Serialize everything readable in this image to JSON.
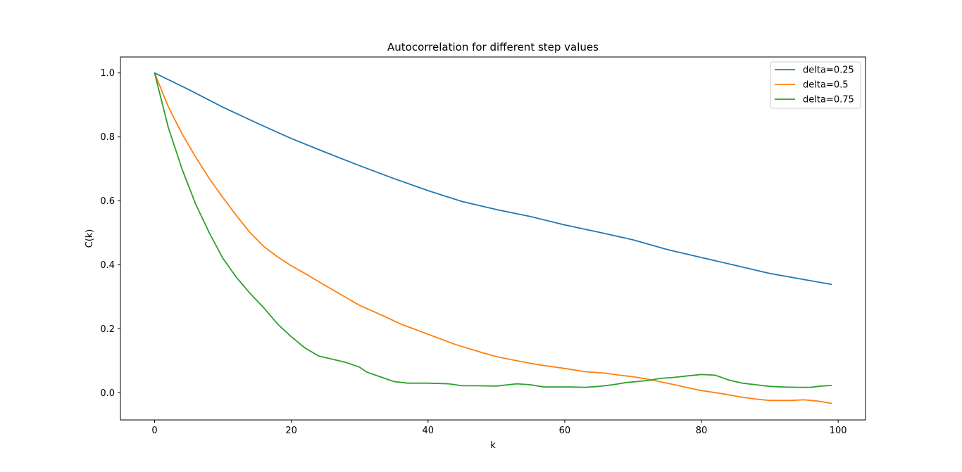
{
  "chart_data": {
    "type": "line",
    "title": "Autocorrelation for different step values",
    "xlabel": "k",
    "ylabel": "C(k)",
    "xlim": [
      -5,
      104
    ],
    "ylim": [
      -0.085,
      1.05
    ],
    "xticks": [
      0,
      20,
      40,
      60,
      80,
      100
    ],
    "yticks": [
      0.0,
      0.2,
      0.4,
      0.6,
      0.8,
      1.0
    ],
    "xtick_labels": [
      "0",
      "20",
      "40",
      "60",
      "80",
      "100"
    ],
    "ytick_labels": [
      "0.0",
      "0.2",
      "0.4",
      "0.6",
      "0.8",
      "1.0"
    ],
    "grid": false,
    "legend_position": "top-right",
    "series": [
      {
        "name": "delta=0.25",
        "color": "#1f77b4",
        "x": [
          0,
          5,
          10,
          15,
          20,
          25,
          30,
          35,
          40,
          45,
          50,
          55,
          60,
          65,
          70,
          75,
          80,
          85,
          90,
          95,
          99
        ],
        "y": [
          1.0,
          0.948,
          0.893,
          0.843,
          0.795,
          0.752,
          0.71,
          0.67,
          0.632,
          0.598,
          0.573,
          0.551,
          0.525,
          0.502,
          0.478,
          0.448,
          0.423,
          0.398,
          0.373,
          0.354,
          0.339
        ]
      },
      {
        "name": "delta=0.5",
        "color": "#ff7f0e",
        "x": [
          0,
          2,
          4,
          6,
          8,
          10,
          12,
          14,
          16,
          18,
          20,
          22,
          25,
          28,
          30,
          33,
          36,
          40,
          44,
          48,
          50,
          53,
          56,
          60,
          63,
          66,
          68,
          70,
          72,
          75,
          78,
          80,
          83,
          86,
          88,
          90,
          93,
          95,
          97,
          99
        ],
        "y": [
          1.0,
          0.895,
          0.81,
          0.737,
          0.67,
          0.61,
          0.553,
          0.5,
          0.457,
          0.425,
          0.397,
          0.373,
          0.335,
          0.298,
          0.273,
          0.245,
          0.215,
          0.183,
          0.151,
          0.125,
          0.113,
          0.1,
          0.088,
          0.076,
          0.066,
          0.061,
          0.055,
          0.05,
          0.043,
          0.03,
          0.016,
          0.007,
          -0.003,
          -0.014,
          -0.02,
          -0.024,
          -0.024,
          -0.022,
          -0.026,
          -0.033
        ]
      },
      {
        "name": "delta=0.75",
        "color": "#2ca02c",
        "x": [
          0,
          2,
          4,
          6,
          8,
          10,
          12,
          14,
          16,
          18,
          20,
          22,
          24,
          26,
          28,
          30,
          31,
          33,
          35,
          37,
          40,
          43,
          45,
          47,
          50,
          53,
          55,
          57,
          59,
          61,
          63,
          65,
          67,
          69,
          72,
          74,
          76,
          78,
          80,
          82,
          84,
          86,
          88,
          90,
          92,
          94,
          96,
          97,
          99
        ],
        "y": [
          1.0,
          0.83,
          0.7,
          0.59,
          0.5,
          0.42,
          0.36,
          0.31,
          0.265,
          0.215,
          0.175,
          0.14,
          0.115,
          0.105,
          0.095,
          0.08,
          0.065,
          0.05,
          0.035,
          0.03,
          0.03,
          0.028,
          0.022,
          0.022,
          0.021,
          0.028,
          0.025,
          0.018,
          0.018,
          0.018,
          0.017,
          0.02,
          0.025,
          0.032,
          0.038,
          0.045,
          0.048,
          0.053,
          0.057,
          0.055,
          0.04,
          0.03,
          0.025,
          0.02,
          0.018,
          0.017,
          0.017,
          0.02,
          0.023
        ]
      }
    ]
  }
}
